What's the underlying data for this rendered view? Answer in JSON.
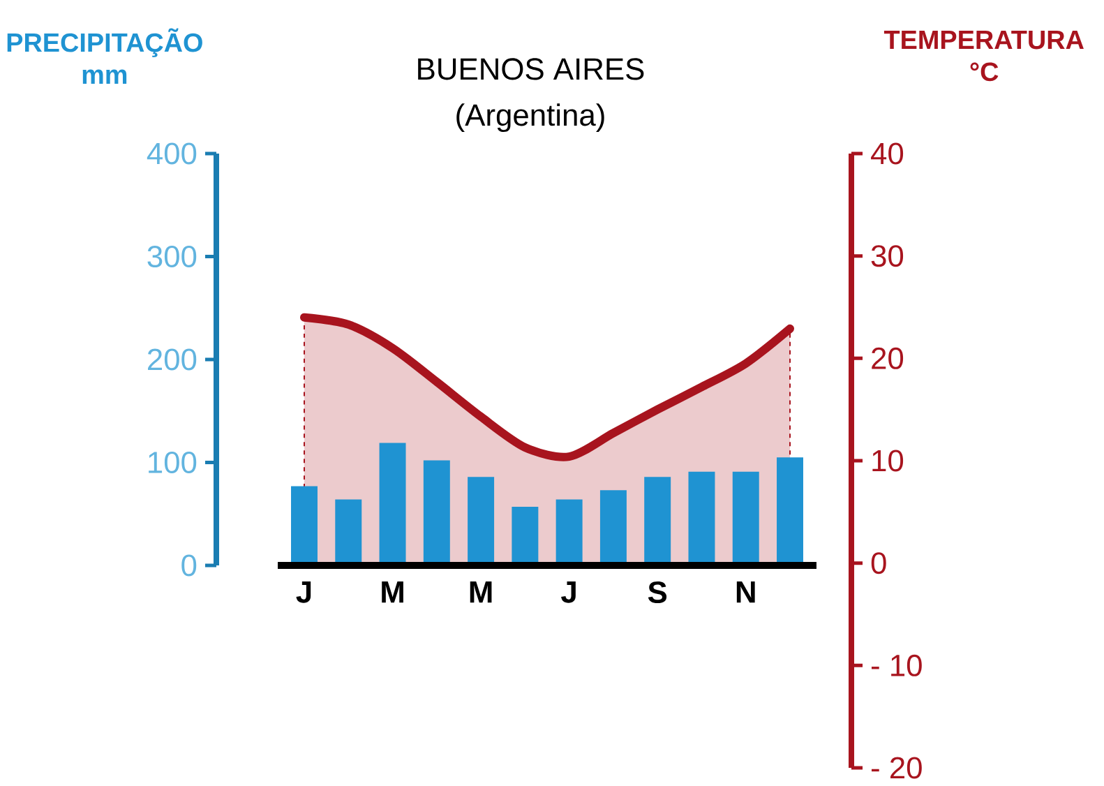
{
  "chart_data": {
    "type": "bar",
    "title": "BUENOS AIRES",
    "subtitle": "(Argentina)",
    "ylabel": "PRECIPITAÇÃO mm",
    "y2label": "TEMPERATURA °C",
    "categories": [
      "J",
      null,
      "M",
      null,
      "M",
      null,
      "J",
      null,
      "S",
      null,
      "N",
      null
    ],
    "series": [
      {
        "axis": "y",
        "color": "#1f93d2",
        "values": [
          77,
          64,
          119,
          102,
          86,
          57,
          64,
          73,
          86,
          91,
          91,
          105
        ]
      },
      {
        "type": "area",
        "axis": "y2",
        "color": "#a8141e",
        "values": [
          24,
          23.3,
          21,
          17.7,
          14.3,
          11.3,
          10.4,
          12.7,
          15,
          17.2,
          19.5,
          22.9
        ]
      }
    ],
    "ylim": [
      0,
      400
    ],
    "yticks": [
      0,
      100,
      200,
      300,
      400
    ],
    "y2lim": [
      -20,
      40
    ],
    "y2ticks": [
      40,
      30,
      20,
      10,
      0,
      {
        "value": -10,
        "label": "- 10"
      },
      {
        "value": -20,
        "label": "- 20"
      }
    ],
    "grid": false
  }
}
